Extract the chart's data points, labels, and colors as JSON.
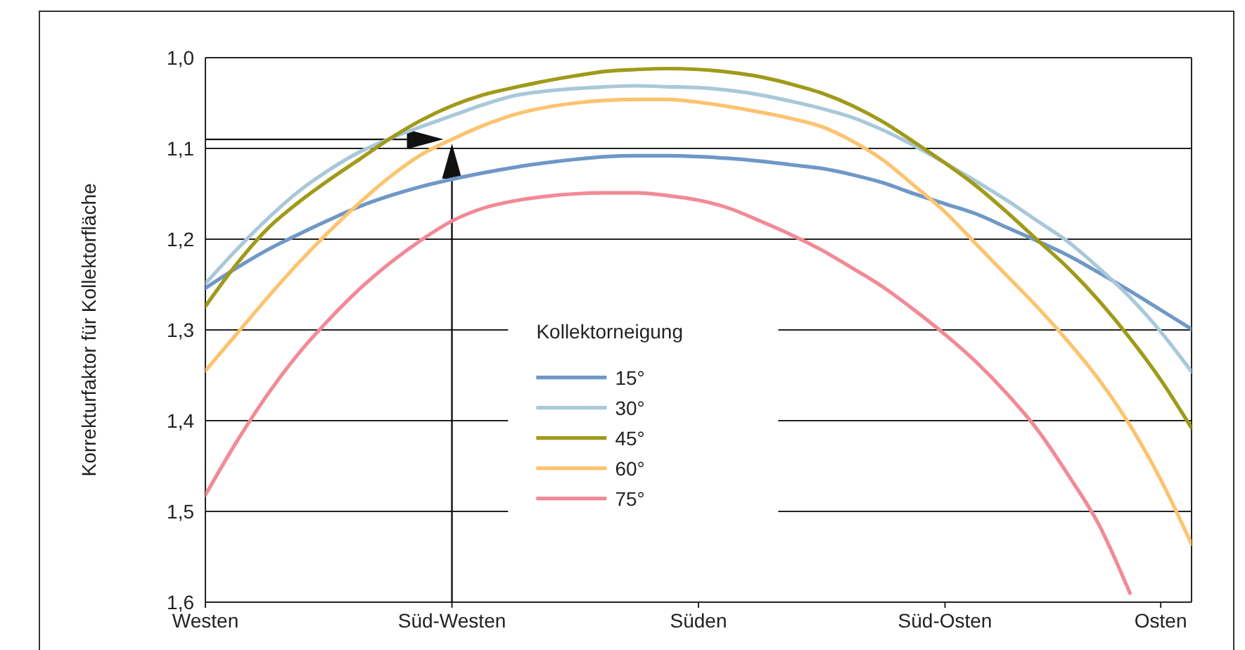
{
  "chart_data": {
    "type": "line",
    "ylabel": "Korrekturfaktor für Kollektorfläche",
    "legend_title": "Kollektorneigung",
    "categories": [
      "Westen",
      null,
      null,
      null,
      null,
      null,
      null,
      null,
      "Süd-Westen",
      null,
      null,
      null,
      null,
      null,
      null,
      null,
      "Süden",
      null,
      null,
      null,
      null,
      null,
      null,
      null,
      "Süd-Osten",
      null,
      null,
      null,
      null,
      null,
      null,
      "Osten",
      null
    ],
    "ylim": [
      1.6,
      1.0
    ],
    "yticks": [
      {
        "value": 1.0,
        "label": "1,0"
      },
      {
        "value": 1.1,
        "label": "1,1"
      },
      {
        "value": 1.2,
        "label": "1,2"
      },
      {
        "value": 1.3,
        "label": "1,3"
      },
      {
        "value": 1.4,
        "label": "1,4"
      },
      {
        "value": 1.5,
        "label": "1,5"
      },
      {
        "value": 1.6,
        "label": "1,6"
      }
    ],
    "grid": "y",
    "legend": "bottom",
    "marker": "none",
    "line_style": "solid",
    "series": [
      {
        "name": "15°",
        "color": "#6f97c8",
        "values": [
          1.254,
          1.232,
          1.212,
          1.195,
          1.179,
          1.164,
          1.152,
          1.142,
          1.134,
          1.127,
          1.121,
          1.116,
          1.112,
          1.109,
          1.108,
          1.108,
          1.109,
          1.111,
          1.114,
          1.118,
          1.122,
          1.129,
          1.138,
          1.15,
          1.161,
          1.172,
          1.187,
          1.202,
          1.218,
          1.237,
          1.257,
          1.278,
          1.299
        ]
      },
      {
        "name": "30°",
        "color": "#a9c8da",
        "values": [
          1.249,
          1.212,
          1.178,
          1.148,
          1.124,
          1.104,
          1.089,
          1.076,
          1.064,
          1.052,
          1.042,
          1.037,
          1.034,
          1.032,
          1.031,
          1.032,
          1.033,
          1.036,
          1.041,
          1.048,
          1.056,
          1.066,
          1.08,
          1.097,
          1.116,
          1.136,
          1.157,
          1.18,
          1.203,
          1.232,
          1.264,
          1.302,
          1.346
        ]
      },
      {
        "name": "45°",
        "color": "#a09a1a",
        "values": [
          1.274,
          1.228,
          1.189,
          1.16,
          1.135,
          1.112,
          1.089,
          1.069,
          1.053,
          1.041,
          1.033,
          1.026,
          1.02,
          1.015,
          1.013,
          1.012,
          1.013,
          1.016,
          1.021,
          1.029,
          1.039,
          1.053,
          1.071,
          1.093,
          1.116,
          1.141,
          1.17,
          1.201,
          1.232,
          1.268,
          1.309,
          1.355,
          1.408
        ]
      },
      {
        "name": "60°",
        "color": "#fdc36e",
        "values": [
          1.345,
          1.305,
          1.265,
          1.227,
          1.192,
          1.16,
          1.131,
          1.107,
          1.09,
          1.075,
          1.063,
          1.055,
          1.05,
          1.047,
          1.046,
          1.046,
          1.049,
          1.054,
          1.06,
          1.067,
          1.076,
          1.092,
          1.113,
          1.141,
          1.17,
          1.205,
          1.24,
          1.275,
          1.313,
          1.355,
          1.405,
          1.465,
          1.536
        ]
      },
      {
        "name": "75°",
        "color": "#f28a96",
        "values": [
          1.482,
          1.424,
          1.372,
          1.327,
          1.289,
          1.255,
          1.226,
          1.201,
          1.18,
          1.166,
          1.158,
          1.153,
          1.15,
          1.149,
          1.149,
          1.152,
          1.157,
          1.166,
          1.18,
          1.195,
          1.212,
          1.232,
          1.253,
          1.278,
          1.305,
          1.335,
          1.37,
          1.41,
          1.46,
          1.515,
          1.59,
          null,
          null
        ]
      }
    ]
  }
}
